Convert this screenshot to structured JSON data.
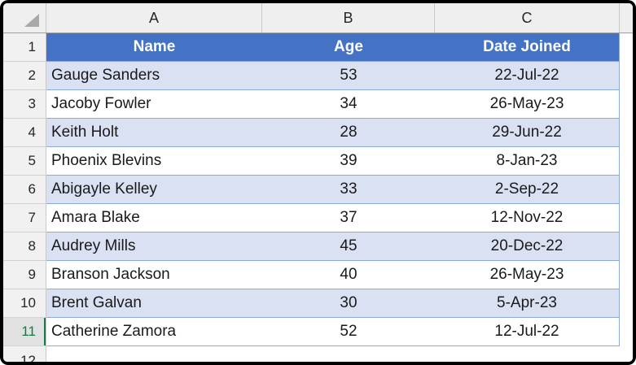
{
  "sheet": {
    "column_letters": [
      "A",
      "B",
      "C"
    ],
    "row_numbers": [
      "1",
      "2",
      "3",
      "4",
      "5",
      "6",
      "7",
      "8",
      "9",
      "10",
      "11",
      "12"
    ],
    "active_row": "11",
    "table": {
      "headers": [
        "Name",
        "Age",
        "Date Joined"
      ],
      "rows": [
        {
          "name": "Gauge Sanders",
          "age": "53",
          "date": "22-Jul-22"
        },
        {
          "name": "Jacoby Fowler",
          "age": "34",
          "date": "26-May-23"
        },
        {
          "name": "Keith Holt",
          "age": "28",
          "date": "29-Jun-22"
        },
        {
          "name": "Phoenix Blevins",
          "age": "39",
          "date": "8-Jan-23"
        },
        {
          "name": "Abigayle Kelley",
          "age": "33",
          "date": "2-Sep-22"
        },
        {
          "name": "Amara Blake",
          "age": "37",
          "date": "12-Nov-22"
        },
        {
          "name": "Audrey Mills",
          "age": "45",
          "date": "20-Dec-22"
        },
        {
          "name": "Branson Jackson",
          "age": "40",
          "date": "26-May-23"
        },
        {
          "name": "Brent Galvan",
          "age": "30",
          "date": "5-Apr-23"
        },
        {
          "name": "Catherine Zamora",
          "age": "52",
          "date": "12-Jul-22"
        }
      ]
    },
    "colors": {
      "table_header_bg": "#4472C4",
      "table_header_text": "#FFFFFF",
      "banded_row_bg": "#D9E1F2",
      "table_border": "#8EA9DB",
      "active_row_green": "#107C41",
      "chrome_bg": "#EFEFEF"
    }
  }
}
